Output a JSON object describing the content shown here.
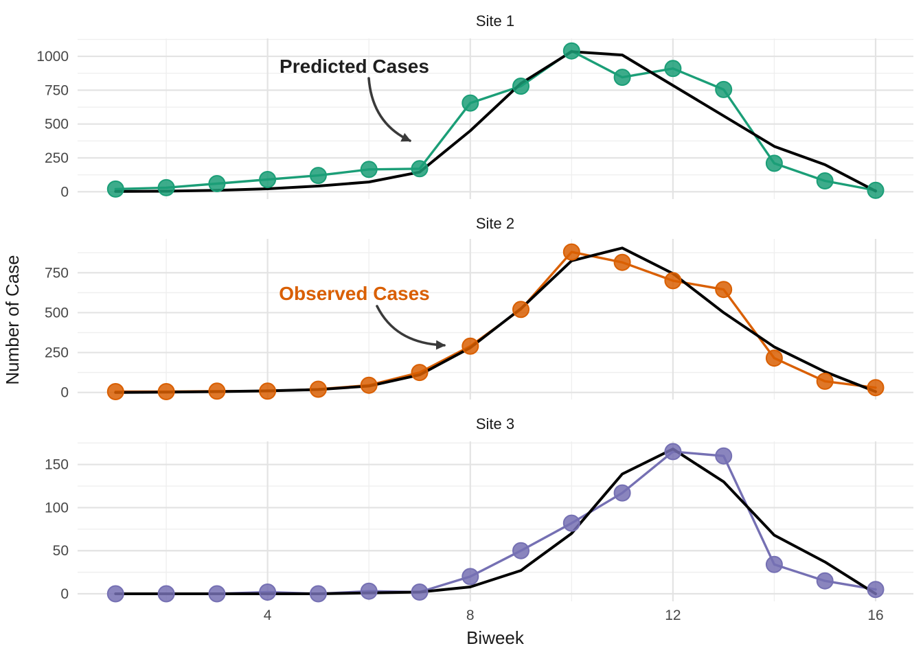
{
  "chart_data": {
    "type": "line",
    "xlabel": "Biweek",
    "ylabel": "Number of Case",
    "x": [
      1,
      2,
      3,
      4,
      5,
      6,
      7,
      8,
      9,
      10,
      11,
      12,
      13,
      14,
      15,
      16
    ],
    "x_ticks": [
      4,
      8,
      12,
      16
    ],
    "grid": "on",
    "legend": "none",
    "series_names": {
      "observed": "Observed Cases",
      "predicted": "Predicted Cases"
    },
    "predicted_line_color": "#000000",
    "facets": [
      {
        "title": "Site 1",
        "color": "#1B9E77",
        "y_ticks": [
          0,
          250,
          500,
          750,
          1000
        ],
        "ylim": [
          0,
          1130
        ],
        "observed": [
          20,
          30,
          60,
          90,
          120,
          165,
          170,
          655,
          780,
          1040,
          845,
          910,
          755,
          210,
          80,
          10
        ],
        "predicted": [
          2,
          4,
          10,
          22,
          42,
          72,
          145,
          450,
          800,
          1035,
          1010,
          785,
          560,
          335,
          200,
          5
        ]
      },
      {
        "title": "Site 2",
        "color": "#D95F02",
        "y_ticks": [
          0,
          250,
          500,
          750
        ],
        "ylim": [
          0,
          960
        ],
        "observed": [
          5,
          5,
          8,
          8,
          20,
          45,
          125,
          290,
          520,
          880,
          815,
          700,
          645,
          215,
          70,
          30
        ],
        "predicted": [
          0,
          2,
          5,
          10,
          18,
          40,
          110,
          280,
          525,
          825,
          905,
          745,
          500,
          285,
          130,
          5
        ]
      },
      {
        "title": "Site 3",
        "color": "#7570B3",
        "y_ticks": [
          0,
          50,
          100,
          150
        ],
        "ylim": [
          0,
          177
        ],
        "observed": [
          0,
          0,
          0,
          2,
          0,
          3,
          2,
          20,
          50,
          82,
          117,
          165,
          160,
          34,
          15,
          5
        ],
        "predicted": [
          0,
          0,
          0,
          0,
          0,
          1,
          2,
          8,
          27,
          70,
          139,
          168,
          130,
          68,
          37,
          0
        ]
      }
    ],
    "annotations": [
      {
        "text": "Predicted Cases",
        "color": "#1f1f1f",
        "target": "predicted line, Site 1, near biweek 7-8"
      },
      {
        "text": "Observed Cases",
        "color": "#D95F02",
        "target": "observed line, Site 2, near biweek 8"
      }
    ]
  }
}
